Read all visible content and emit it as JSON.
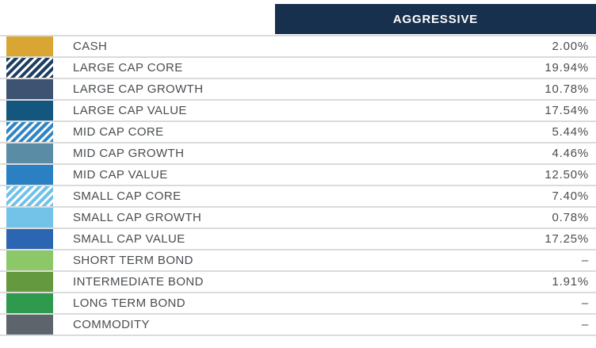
{
  "header": {
    "title": "AGGRESSIVE",
    "bg_color": "#17304e"
  },
  "table": {
    "rows": [
      {
        "label": "CASH",
        "value": "2.00%",
        "color": "#d9a633",
        "pattern": "solid"
      },
      {
        "label": "LARGE CAP CORE",
        "value": "19.94%",
        "color": "#1d3e61",
        "pattern": "hatch"
      },
      {
        "label": "LARGE CAP GROWTH",
        "value": "10.78%",
        "color": "#3e5372",
        "pattern": "solid"
      },
      {
        "label": "LARGE CAP VALUE",
        "value": "17.54%",
        "color": "#13567f",
        "pattern": "solid"
      },
      {
        "label": "MID CAP CORE",
        "value": "5.44%",
        "color": "#2e86c6",
        "pattern": "hatch"
      },
      {
        "label": "MID CAP GROWTH",
        "value": "4.46%",
        "color": "#5a8ca6",
        "pattern": "solid"
      },
      {
        "label": "MID CAP VALUE",
        "value": "12.50%",
        "color": "#2b80c4",
        "pattern": "solid"
      },
      {
        "label": "SMALL CAP CORE",
        "value": "7.40%",
        "color": "#70c2e9",
        "pattern": "hatch"
      },
      {
        "label": "SMALL CAP GROWTH",
        "value": "0.78%",
        "color": "#73c3e9",
        "pattern": "solid"
      },
      {
        "label": "SMALL CAP VALUE",
        "value": "17.25%",
        "color": "#2c65b1",
        "pattern": "solid"
      },
      {
        "label": "SHORT TERM BOND",
        "value": "–",
        "color": "#8cc868",
        "pattern": "solid"
      },
      {
        "label": "INTERMEDIATE BOND",
        "value": "1.91%",
        "color": "#64993f",
        "pattern": "solid"
      },
      {
        "label": "LONG TERM BOND",
        "value": "–",
        "color": "#2f9a4d",
        "pattern": "solid"
      },
      {
        "label": "COMMODITY",
        "value": "–",
        "color": "#5d646b",
        "pattern": "solid"
      }
    ]
  },
  "chart_data": {
    "type": "table",
    "title": "AGGRESSIVE",
    "categories": [
      "CASH",
      "LARGE CAP CORE",
      "LARGE CAP GROWTH",
      "LARGE CAP VALUE",
      "MID CAP CORE",
      "MID CAP GROWTH",
      "MID CAP VALUE",
      "SMALL CAP CORE",
      "SMALL CAP GROWTH",
      "SMALL CAP VALUE",
      "SHORT TERM BOND",
      "INTERMEDIATE BOND",
      "LONG TERM BOND",
      "COMMODITY"
    ],
    "values": [
      2.0,
      19.94,
      10.78,
      17.54,
      5.44,
      4.46,
      12.5,
      7.4,
      0.78,
      17.25,
      null,
      1.91,
      null,
      null
    ],
    "unit": "%",
    "missing_display": "–",
    "legend_position": "left-swatches",
    "grid": "horizontal-separators"
  }
}
